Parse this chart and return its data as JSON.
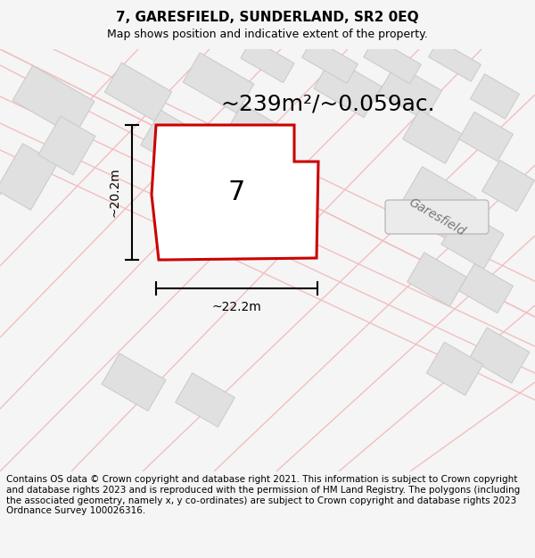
{
  "title": "7, GARESFIELD, SUNDERLAND, SR2 0EQ",
  "subtitle": "Map shows position and indicative extent of the property.",
  "area_label": "~239m²/~0.059ac.",
  "width_label": "~22.2m",
  "height_label": "~20.2m",
  "number_label": "7",
  "street_label": "Garesfield",
  "footer_text": "Contains OS data © Crown copyright and database right 2021. This information is subject to Crown copyright and database rights 2023 and is reproduced with the permission of HM Land Registry. The polygons (including the associated geometry, namely x, y co-ordinates) are subject to Crown copyright and database rights 2023 Ordnance Survey 100026316.",
  "bg_color": "#f5f5f5",
  "map_bg_color": "#ffffff",
  "property_stroke": "#cc0000",
  "road_color": "#f2bfbf",
  "building_color": "#e0e0e0",
  "building_edge": "#cccccc",
  "title_fontsize": 11,
  "subtitle_fontsize": 9,
  "area_fontsize": 18,
  "number_fontsize": 22,
  "footer_fontsize": 7.5
}
